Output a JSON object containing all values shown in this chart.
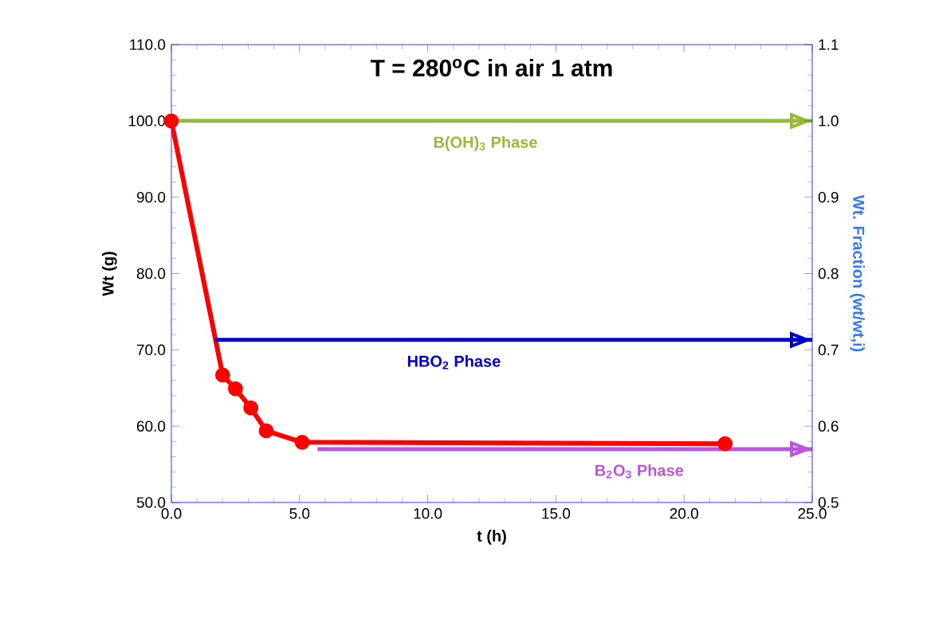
{
  "chart_data": {
    "type": "line",
    "title": "T = 280$^{o}$C in air 1 atm",
    "xlabel": "t (h)",
    "ylabel": "Wt (g)",
    "y2label": "Wt. Fraction (wt/wt,i)",
    "xlim": [
      0,
      25
    ],
    "xticks": [
      {
        "value": 0,
        "label": "0.0"
      },
      {
        "value": 5,
        "label": "5.0"
      },
      {
        "value": 10,
        "label": "10.0"
      },
      {
        "value": 15,
        "label": "15.0"
      },
      {
        "value": 20,
        "label": "20.0"
      },
      {
        "value": 25,
        "label": "25.0"
      }
    ],
    "ylim": [
      50,
      110
    ],
    "yticks": [
      {
        "value": 50,
        "label": "50.0"
      },
      {
        "value": 60,
        "label": "60.0"
      },
      {
        "value": 70,
        "label": "70.0"
      },
      {
        "value": 80,
        "label": "80.0"
      },
      {
        "value": 90,
        "label": "90.0"
      },
      {
        "value": 100,
        "label": "100.0"
      },
      {
        "value": 110,
        "label": "110.0"
      }
    ],
    "y2lim": [
      0.5,
      1.1
    ],
    "y2ticks": [
      0.5,
      0.6,
      0.7,
      0.8,
      0.9,
      {
        "value": 1.0,
        "label": "1.0"
      },
      1.1
    ],
    "marker": "circle",
    "grid": false,
    "series": [
      {
        "color": "#ff0000",
        "x": [
          0,
          2.0,
          2.5,
          3.1,
          3.7,
          5.1,
          21.6
        ],
        "values": [
          100,
          66.7,
          64.9,
          62.4,
          59.4,
          57.9,
          57.7
        ]
      },
      {
        "name": "B(OH)$_{3}$ Phase",
        "color": "#99bb33",
        "marker": "none",
        "x": [
          0,
          25
        ],
        "values": [
          100,
          100
        ]
      },
      {
        "name": "HBO$_{2}$ Phase",
        "color": "#0000cc",
        "marker": "none",
        "x": [
          1.7,
          25
        ],
        "values": [
          71.3,
          71.3
        ]
      },
      {
        "name": "B$_{2}$O$_{3}$ Phase",
        "color": "#bb55dd",
        "marker": "none",
        "x": [
          5.7,
          25
        ],
        "values": [
          57.0,
          57.0
        ]
      }
    ]
  }
}
